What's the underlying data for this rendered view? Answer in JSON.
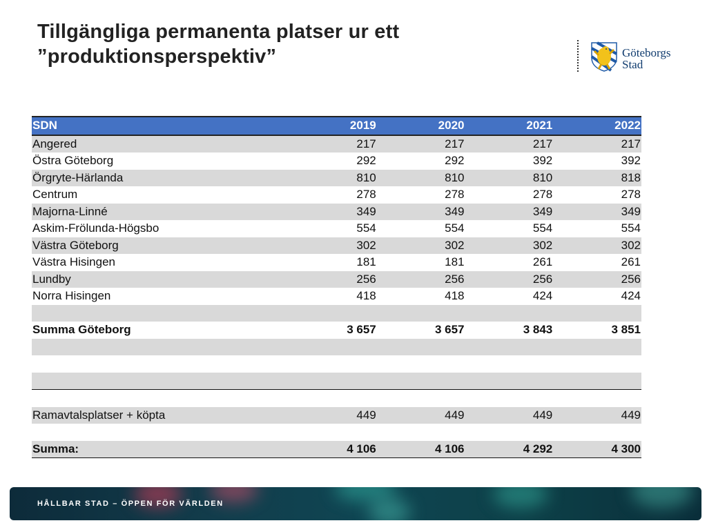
{
  "title": {
    "line1": "Tillgängliga permanenta platser ur ett",
    "line2": "”produktionsperspektiv”"
  },
  "logo": {
    "line1": "Göteborgs",
    "line2": "Stad",
    "icon": "gothenburg-lion-crest-icon",
    "color": "#0f3b6e"
  },
  "table": {
    "headers": [
      "SDN",
      "2019",
      "2020",
      "2021",
      "2022"
    ],
    "rows": [
      {
        "label": "Angered",
        "values": [
          "217",
          "217",
          "217",
          "217"
        ]
      },
      {
        "label": "Östra Göteborg",
        "values": [
          "292",
          "292",
          "392",
          "392"
        ]
      },
      {
        "label": "Örgryte-Härlanda",
        "values": [
          "810",
          "810",
          "810",
          "818"
        ]
      },
      {
        "label": "Centrum",
        "values": [
          "278",
          "278",
          "278",
          "278"
        ]
      },
      {
        "label": "Majorna-Linné",
        "values": [
          "349",
          "349",
          "349",
          "349"
        ]
      },
      {
        "label": "Askim-Frölunda-Högsbo",
        "values": [
          "554",
          "554",
          "554",
          "554"
        ]
      },
      {
        "label": "Västra Göteborg",
        "values": [
          "302",
          "302",
          "302",
          "302"
        ]
      },
      {
        "label": "Västra Hisingen",
        "values": [
          "181",
          "181",
          "261",
          "261"
        ]
      },
      {
        "label": "Lundby",
        "values": [
          "256",
          "256",
          "256",
          "256"
        ]
      },
      {
        "label": "Norra Hisingen",
        "values": [
          "418",
          "418",
          "424",
          "424"
        ]
      }
    ],
    "summa_goteborg": {
      "label": "Summa Göteborg",
      "values": [
        "3 657",
        "3 657",
        "3 843",
        "3 851"
      ]
    },
    "ramavtal": {
      "label": "Ramavtalsplatser + köpta",
      "values": [
        "449",
        "449",
        "449",
        "449"
      ]
    },
    "summa": {
      "label": "Summa:",
      "values": [
        "4 106",
        "4 106",
        "4 292",
        "4 300"
      ]
    },
    "header_color": "#4472c4",
    "stripe_color": "#d9d9d9"
  },
  "footer": {
    "text": "HÅLLBAR STAD – ÖPPEN FÖR VÄRLDEN"
  }
}
